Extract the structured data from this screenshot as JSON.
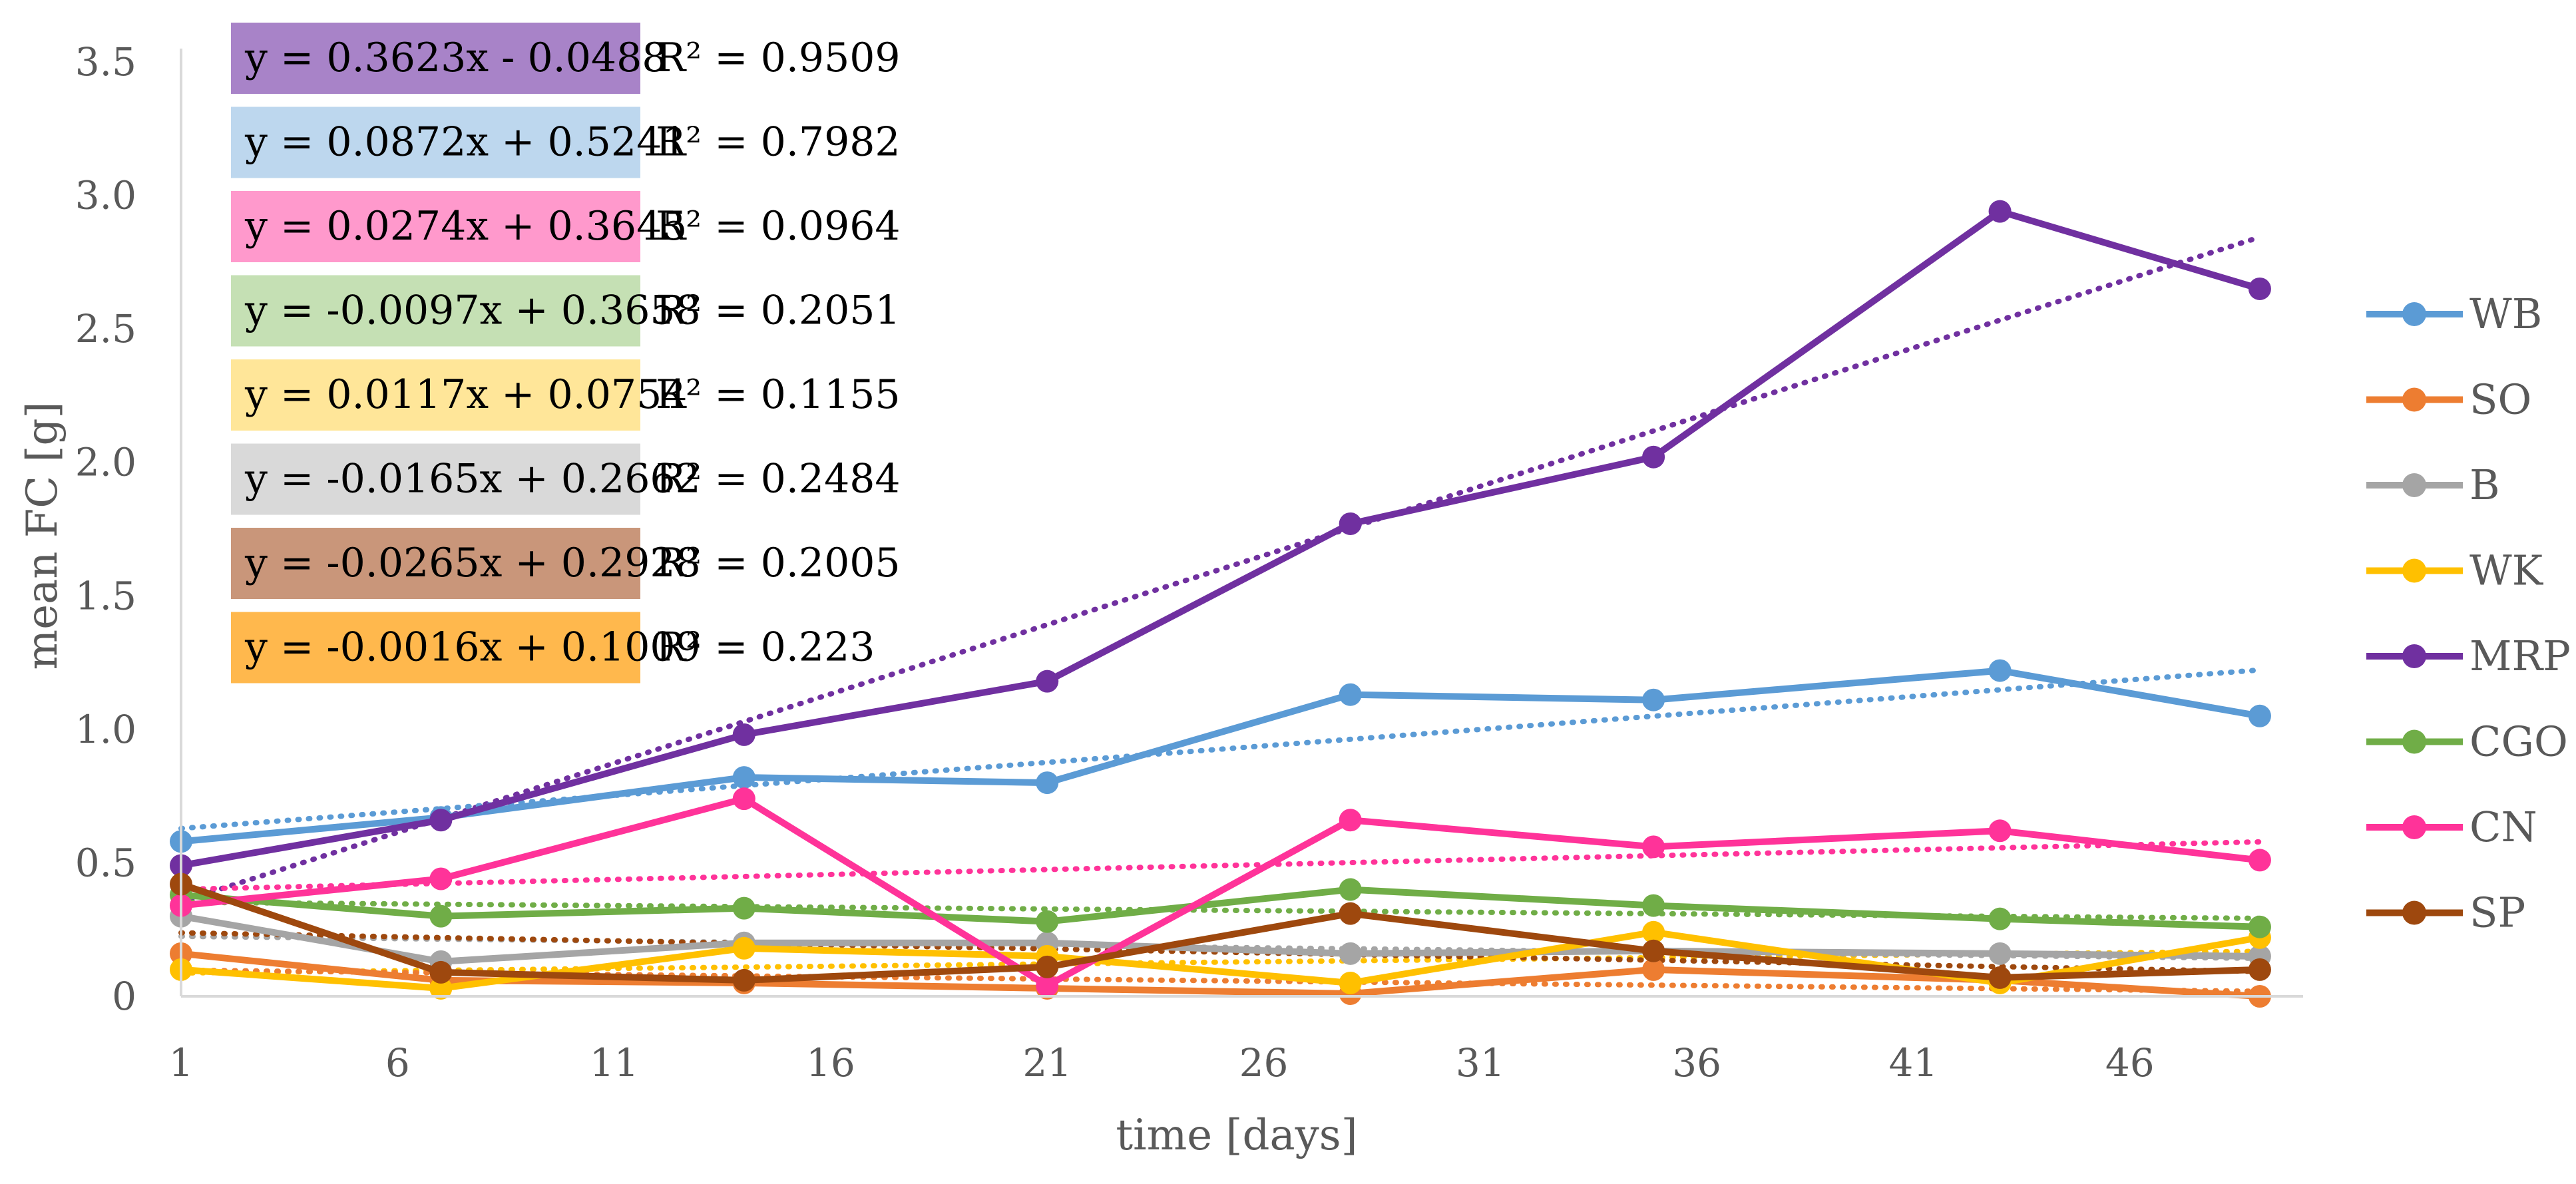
{
  "chart_data": {
    "type": "line",
    "title": "",
    "xlabel": "time [days]",
    "ylabel": "mean FC [g]",
    "xlim": [
      1,
      50
    ],
    "ylim": [
      0,
      3.5
    ],
    "x_ticks": [
      1,
      6,
      11,
      16,
      21,
      26,
      31,
      36,
      41,
      46
    ],
    "x_tick_labels": [
      "1",
      "6",
      "11",
      "16",
      "21",
      "26",
      "31",
      "36",
      "41",
      "46"
    ],
    "y_ticks": [
      0,
      0.5,
      1.0,
      1.5,
      2.0,
      2.5,
      3.0,
      3.5
    ],
    "y_tick_labels": [
      "0",
      "0.5",
      "1.0",
      "1.5",
      "2.0",
      "2.5",
      "3.0",
      "3.5"
    ],
    "x": [
      1,
      7,
      14,
      21,
      28,
      35,
      43,
      49
    ],
    "legend_position": "right",
    "series": [
      {
        "name": "WB",
        "color": "#5B9BD5",
        "values": [
          0.58,
          0.67,
          0.82,
          0.8,
          1.13,
          1.11,
          1.22,
          1.05
        ]
      },
      {
        "name": "SO",
        "color": "#ED7D31",
        "values": [
          0.16,
          0.06,
          0.05,
          0.03,
          0.01,
          0.1,
          0.06,
          0.0
        ]
      },
      {
        "name": "B",
        "color": "#A5A5A5",
        "values": [
          0.3,
          0.13,
          0.2,
          0.2,
          0.16,
          0.17,
          0.16,
          0.15
        ]
      },
      {
        "name": "WK",
        "color": "#FFC000",
        "values": [
          0.1,
          0.03,
          0.18,
          0.15,
          0.05,
          0.24,
          0.05,
          0.22
        ]
      },
      {
        "name": "MRP",
        "color": "#7030A0",
        "values": [
          0.49,
          0.66,
          0.98,
          1.18,
          1.77,
          2.02,
          2.94,
          2.65
        ]
      },
      {
        "name": "CGO",
        "color": "#70AD47",
        "values": [
          0.38,
          0.3,
          0.33,
          0.28,
          0.4,
          0.34,
          0.29,
          0.26
        ]
      },
      {
        "name": "CN",
        "color": "#FF3399",
        "values": [
          0.34,
          0.44,
          0.74,
          0.04,
          0.66,
          0.56,
          0.62,
          0.51
        ]
      },
      {
        "name": "SP",
        "color": "#9E480E",
        "values": [
          0.42,
          0.09,
          0.06,
          0.11,
          0.31,
          0.17,
          0.07,
          0.1
        ]
      }
    ],
    "trendlines": [
      {
        "series": "MRP",
        "color": "#7030A0",
        "equation": "y = 0.3623x - 0.0488",
        "r2": "R² = 0.9509",
        "box_color": "#A883C8"
      },
      {
        "series": "WB",
        "color": "#5B9BD5",
        "equation": "y = 0.0872x + 0.5241",
        "r2": "R² = 0.7982",
        "box_color": "#BDD7EE"
      },
      {
        "series": "CN",
        "color": "#FF3399",
        "equation": "y = 0.0274x + 0.3645",
        "r2": "R² = 0.0964",
        "box_color": "#FF99CC"
      },
      {
        "series": "CGO",
        "color": "#70AD47",
        "equation": "y = -0.0097x + 0.3658",
        "r2": "R² = 0.2051",
        "box_color": "#C5E0B4"
      },
      {
        "series": "WK",
        "color": "#FFC000",
        "equation": "y = 0.0117x + 0.0754",
        "r2": "R² = 0.1155",
        "box_color": "#FFE699"
      },
      {
        "series": "B",
        "color": "#A5A5A5",
        "equation": "y = -0.0165x + 0.2662",
        "r2": "R² = 0.2484",
        "box_color": "#D9D9D9"
      },
      {
        "series": "SP",
        "color": "#9E480E",
        "equation": "y = -0.0265x + 0.2928",
        "r2": "R² = 0.2005",
        "box_color": "#C9967A"
      },
      {
        "series": "SO",
        "color": "#ED7D31",
        "equation": "y = -0.0016x + 0.1009",
        "r2": "R² = 0.223",
        "box_color": "#FFB84D"
      }
    ]
  }
}
